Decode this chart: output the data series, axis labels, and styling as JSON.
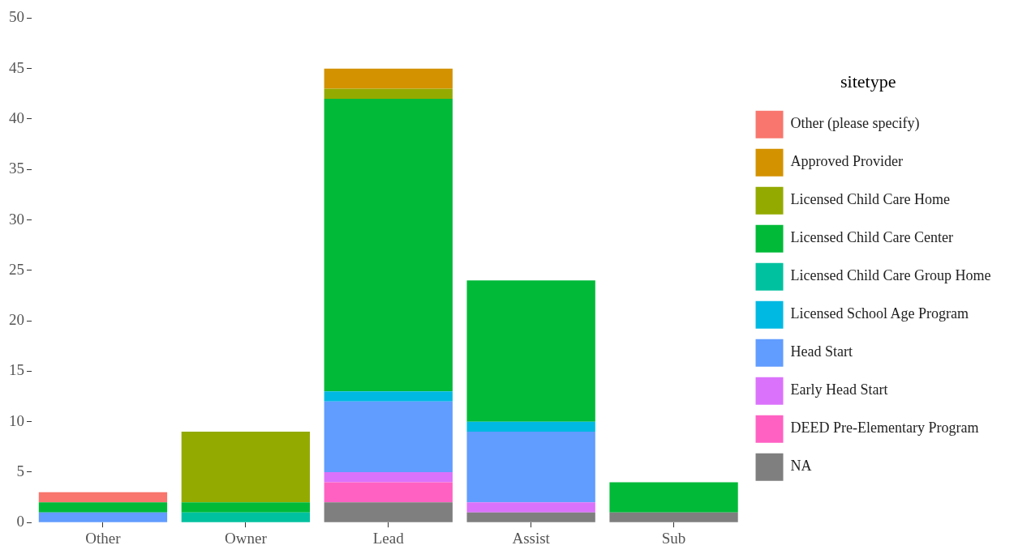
{
  "chart_data": {
    "type": "bar",
    "stacked": true,
    "legend": "right",
    "legend_title": "sitetype",
    "grid": false,
    "categories": [
      "Other",
      "Owner",
      "Lead",
      "Assist",
      "Sub"
    ],
    "ylim": [
      0,
      50
    ],
    "yticks": [
      0,
      5,
      10,
      15,
      20,
      25,
      30,
      35,
      40,
      45,
      50
    ],
    "series": [
      {
        "name": "NA",
        "color": "#7f7f7f",
        "values": [
          0,
          0,
          2,
          1,
          1
        ]
      },
      {
        "name": "DEED Pre-Elementary Program",
        "color": "#ff61c3",
        "values": [
          0,
          0,
          2,
          0,
          0
        ]
      },
      {
        "name": "Early Head Start",
        "color": "#db72fb",
        "values": [
          0,
          0,
          1,
          1,
          0
        ]
      },
      {
        "name": "Head Start",
        "color": "#619cff",
        "values": [
          1,
          0,
          7,
          7,
          0
        ]
      },
      {
        "name": "Licensed School Age Program",
        "color": "#00b9e3",
        "values": [
          0,
          0,
          1,
          1,
          0
        ]
      },
      {
        "name": "Licensed Child Care Group Home",
        "color": "#00c19f",
        "values": [
          0,
          1,
          0,
          0,
          0
        ]
      },
      {
        "name": "Licensed Child Care Center",
        "color": "#00ba38",
        "values": [
          1,
          1,
          29,
          14,
          3
        ]
      },
      {
        "name": "Licensed Child Care Home",
        "color": "#93aa00",
        "values": [
          0,
          7,
          1,
          0,
          0
        ]
      },
      {
        "name": "Approved Provider",
        "color": "#d39200",
        "values": [
          0,
          0,
          2,
          0,
          0
        ]
      },
      {
        "name": "Other (please specify)",
        "color": "#f8766d",
        "values": [
          1,
          0,
          0,
          0,
          0
        ]
      }
    ]
  }
}
